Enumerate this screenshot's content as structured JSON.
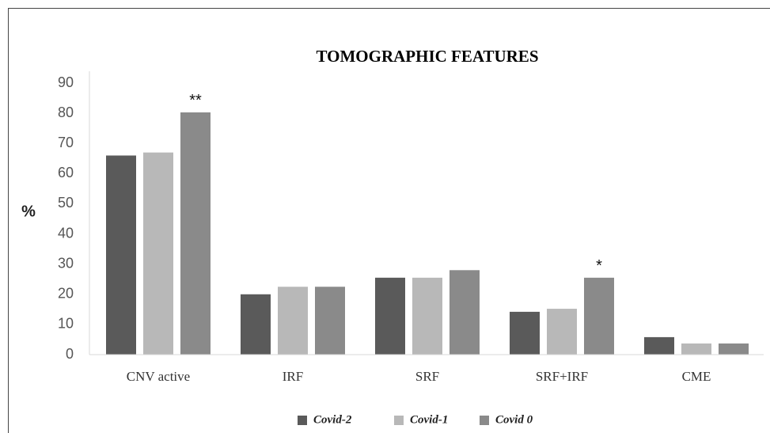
{
  "chart_data": {
    "type": "bar",
    "title": "TOMOGRAPHIC FEATURES",
    "y_label": "%",
    "categories": [
      "CNV active",
      "IRF",
      "SRF",
      "SRF+IRF",
      "CME"
    ],
    "series": [
      {
        "name": "Covid-2",
        "color": "#5a5a5a",
        "values": [
          66,
          20,
          25.5,
          14.2,
          5.8
        ]
      },
      {
        "name": "Covid-1",
        "color": "#b8b8b8",
        "values": [
          67,
          22.5,
          25.5,
          15.2,
          3.7
        ]
      },
      {
        "name": "Covid 0",
        "color": "#8a8a8a",
        "values": [
          80.3,
          22.5,
          28,
          25.5,
          3.7
        ]
      }
    ],
    "ylim": [
      0,
      90
    ],
    "yticks": [
      0,
      10,
      20,
      30,
      40,
      50,
      60,
      70,
      80,
      90
    ],
    "grid": false,
    "legend": "bottom",
    "annotations": [
      {
        "text": "**",
        "category": "CNV active",
        "series": "Covid 0"
      },
      {
        "text": "*",
        "category": "SRF+IRF",
        "series": "Covid 0"
      }
    ]
  }
}
